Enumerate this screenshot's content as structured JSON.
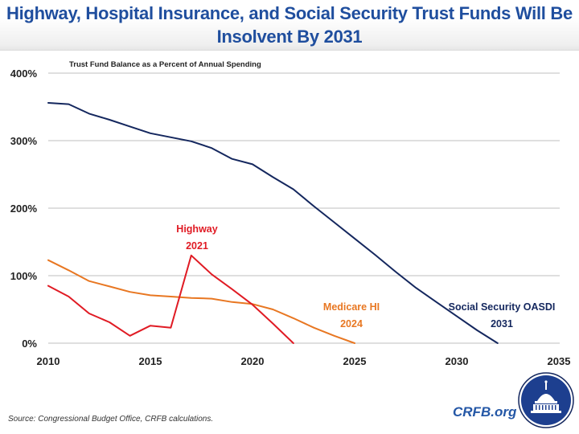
{
  "title": "Highway, Hospital Insurance, and Social Security Trust Funds Will Be Insolvent By 2031",
  "source": "Source: Congressional Budget Office, CRFB calculations.",
  "brand": {
    "text": "CRFB.org",
    "logo": "capitol-dome-logo-icon",
    "color": "#2457a6"
  },
  "chart_data": {
    "type": "line",
    "title": "Highway, Hospital Insurance, and Social Security Trust Funds Will Be Insolvent By 2031",
    "subtitle": "Trust Fund Balance as a Percent of Annual Spending",
    "xlabel": "",
    "ylabel": "Trust Fund Balance as a Percent of Annual Spending",
    "xlim": [
      2010,
      2035
    ],
    "ylim": [
      0,
      400
    ],
    "x_ticks": [
      2010,
      2015,
      2020,
      2025,
      2030,
      2035
    ],
    "x_tick_labels": [
      "2010",
      "2015",
      "2020",
      "2025",
      "2030",
      "2035"
    ],
    "y_ticks": [
      0,
      100,
      200,
      300,
      400
    ],
    "y_tick_labels": [
      "0%",
      "100%",
      "200%",
      "300%",
      "400%"
    ],
    "grid": true,
    "legend": "none (direct labels)",
    "series": [
      {
        "name": "Social Security OASDI",
        "color": "#14275e",
        "x": [
          2010,
          2011,
          2012,
          2013,
          2014,
          2015,
          2016,
          2017,
          2018,
          2019,
          2020,
          2021,
          2022,
          2023,
          2024,
          2025,
          2026,
          2027,
          2028,
          2029,
          2030,
          2031,
          2032
        ],
        "values": [
          356,
          354,
          340,
          331,
          321,
          311,
          305,
          299,
          289,
          273,
          265,
          246,
          228,
          203,
          179,
          155,
          131,
          106,
          82,
          61,
          40,
          19,
          0
        ]
      },
      {
        "name": "Medicare HI",
        "color": "#e87722",
        "x": [
          2010,
          2011,
          2012,
          2013,
          2014,
          2015,
          2016,
          2017,
          2018,
          2019,
          2020,
          2021,
          2022,
          2023,
          2024,
          2025
        ],
        "values": [
          123,
          108,
          92,
          84,
          76,
          71,
          69,
          67,
          66,
          61,
          58,
          50,
          37,
          23,
          11,
          0
        ]
      },
      {
        "name": "Highway",
        "color": "#e01b24",
        "x": [
          2010,
          2011,
          2012,
          2013,
          2014,
          2015,
          2016,
          2017,
          2018,
          2019,
          2020,
          2021,
          2022
        ],
        "values": [
          85,
          69,
          44,
          31,
          11,
          26,
          23,
          130,
          102,
          80,
          57,
          29,
          0
        ]
      }
    ],
    "annotations": [
      {
        "series": "Highway",
        "line1": "Highway",
        "line2": "2021",
        "color": "#e01b24"
      },
      {
        "series": "Medicare HI",
        "line1": "Medicare HI",
        "line2": "2024",
        "color": "#e87722"
      },
      {
        "series": "Social Security OASDI",
        "line1": "Social Security OASDI",
        "line2": "2031",
        "color": "#14275e"
      }
    ]
  }
}
